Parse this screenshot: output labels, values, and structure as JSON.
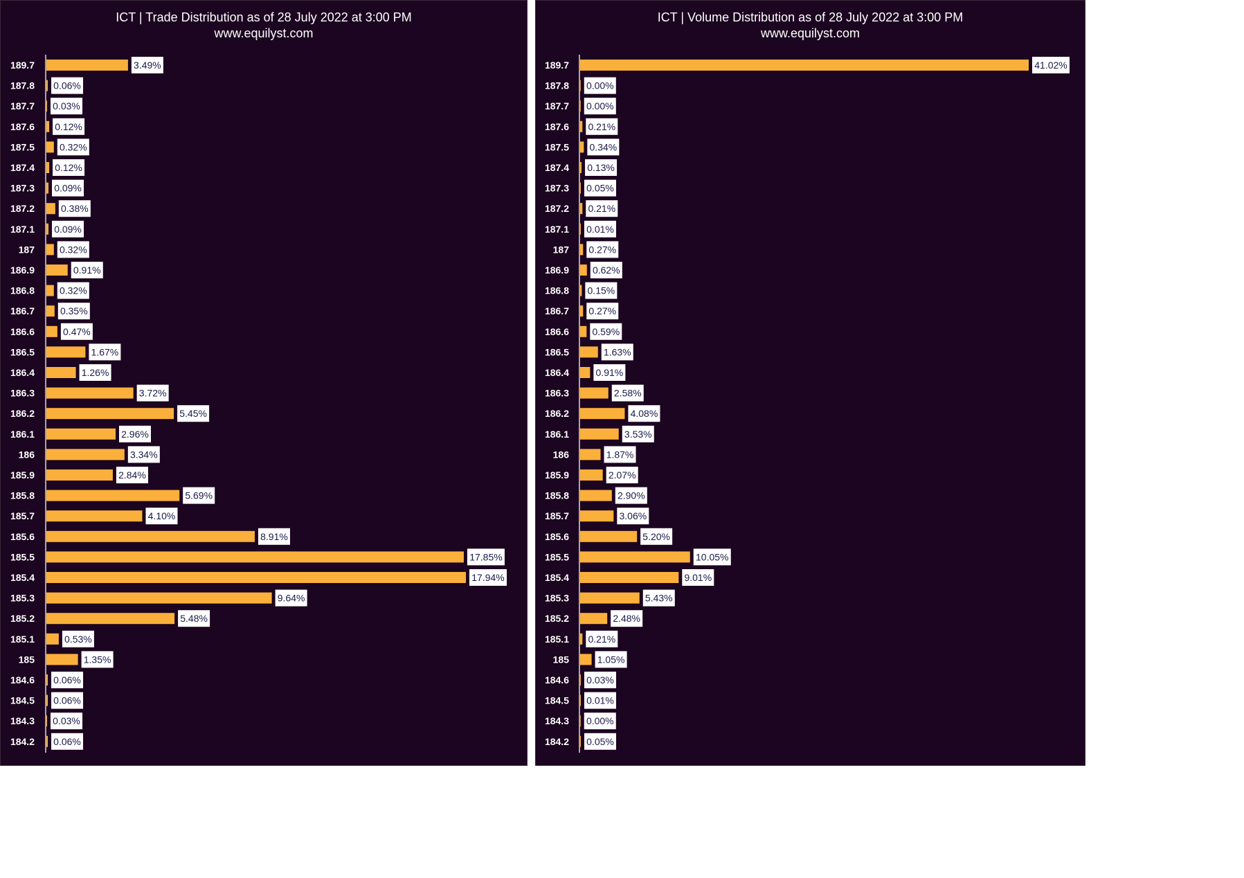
{
  "chart_data": [
    {
      "type": "bar",
      "orientation": "horizontal",
      "title": "ICT | Trade Distribution as of 28 July 2022 at 3:00 PM",
      "subtitle": "www.equilyst.com",
      "categories": [
        "189.7",
        "187.8",
        "187.7",
        "187.6",
        "187.5",
        "187.4",
        "187.3",
        "187.2",
        "187.1",
        "187",
        "186.9",
        "186.8",
        "186.7",
        "186.6",
        "186.5",
        "186.4",
        "186.3",
        "186.2",
        "186.1",
        "186",
        "185.9",
        "185.8",
        "185.7",
        "185.6",
        "185.5",
        "185.4",
        "185.3",
        "185.2",
        "185.1",
        "185",
        "184.6",
        "184.5",
        "184.3",
        "184.2"
      ],
      "values": [
        3.49,
        0.06,
        0.03,
        0.12,
        0.32,
        0.12,
        0.09,
        0.38,
        0.09,
        0.32,
        0.91,
        0.32,
        0.35,
        0.47,
        1.67,
        1.26,
        3.72,
        5.45,
        2.96,
        3.34,
        2.84,
        5.69,
        4.1,
        8.91,
        17.85,
        17.94,
        9.64,
        5.48,
        0.53,
        1.35,
        0.06,
        0.06,
        0.03,
        0.06
      ],
      "labels": [
        "3.49%",
        "0.06%",
        "0.03%",
        "0.12%",
        "0.32%",
        "0.12%",
        "0.09%",
        "0.38%",
        "0.09%",
        "0.32%",
        "0.91%",
        "0.32%",
        "0.35%",
        "0.47%",
        "1.67%",
        "1.26%",
        "3.72%",
        "5.45%",
        "2.96%",
        "3.34%",
        "2.84%",
        "5.69%",
        "4.10%",
        "8.91%",
        "17.85%",
        "17.94%",
        "9.64%",
        "5.48%",
        "0.53%",
        "1.35%",
        "0.06%",
        "0.06%",
        "0.03%",
        "0.06%"
      ],
      "unit": "%",
      "grid": false,
      "legend": "none",
      "colors": {
        "bar": "#fbb03b",
        "background": "#1c0520",
        "label_box": "#ffffff",
        "label_text": "#1a1a4a"
      }
    },
    {
      "type": "bar",
      "orientation": "horizontal",
      "title": "ICT | Volume Distribution as of 28 July 2022 at 3:00 PM",
      "subtitle": "www.equilyst.com",
      "categories": [
        "189.7",
        "187.8",
        "187.7",
        "187.6",
        "187.5",
        "187.4",
        "187.3",
        "187.2",
        "187.1",
        "187",
        "186.9",
        "186.8",
        "186.7",
        "186.6",
        "186.5",
        "186.4",
        "186.3",
        "186.2",
        "186.1",
        "186",
        "185.9",
        "185.8",
        "185.7",
        "185.6",
        "185.5",
        "185.4",
        "185.3",
        "185.2",
        "185.1",
        "185",
        "184.6",
        "184.5",
        "184.3",
        "184.2"
      ],
      "values": [
        41.02,
        0.0,
        0.0,
        0.21,
        0.34,
        0.13,
        0.05,
        0.21,
        0.01,
        0.27,
        0.62,
        0.15,
        0.27,
        0.59,
        1.63,
        0.91,
        2.58,
        4.08,
        3.53,
        1.87,
        2.07,
        2.9,
        3.06,
        5.2,
        10.05,
        9.01,
        5.43,
        2.48,
        0.21,
        1.05,
        0.03,
        0.01,
        0.0,
        0.05
      ],
      "labels": [
        "41.02%",
        "0.00%",
        "0.00%",
        "0.21%",
        "0.34%",
        "0.13%",
        "0.05%",
        "0.21%",
        "0.01%",
        "0.27%",
        "0.62%",
        "0.15%",
        "0.27%",
        "0.59%",
        "1.63%",
        "0.91%",
        "2.58%",
        "4.08%",
        "3.53%",
        "1.87%",
        "2.07%",
        "2.90%",
        "3.06%",
        "5.20%",
        "10.05%",
        "9.01%",
        "5.43%",
        "2.48%",
        "0.21%",
        "1.05%",
        "0.03%",
        "0.01%",
        "0.00%",
        "0.05%"
      ],
      "unit": "%",
      "grid": false,
      "legend": "none",
      "colors": {
        "bar": "#fbb03b",
        "background": "#1c0520",
        "label_box": "#ffffff",
        "label_text": "#1a1a4a"
      }
    }
  ]
}
